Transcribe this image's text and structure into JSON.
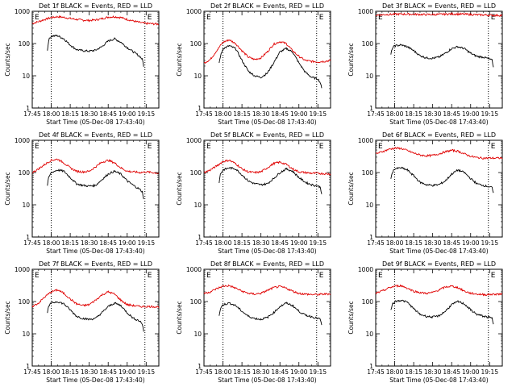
{
  "window": {
    "width_note": ""
  },
  "shared": {
    "ylabel": "Counts/sec",
    "xlabel": "Start Time (05-Dec-08 17:43:40)",
    "x_ticks": [
      "17:45",
      "18:00",
      "18:15",
      "18:30",
      "18:45",
      "19:00",
      "19:15"
    ],
    "y_ticks": [
      "1",
      "10",
      "100",
      "1000"
    ],
    "marker_label": "E",
    "colors": {
      "events": "#000000",
      "lld": "#e00000",
      "axes": "#000000",
      "background": "#ffffff"
    }
  },
  "chart_data": [
    {
      "type": "line",
      "title": "Det 1f BLACK = Events, RED = LLD",
      "xlabel": "Start Time (05-Dec-08 17:43:40)",
      "ylabel": "Counts/sec",
      "x_axis": "minutes since 17:45",
      "xlim": [
        0,
        100
      ],
      "ylim": [
        1,
        1000
      ],
      "yscale": "log",
      "markers_x": [
        15,
        89
      ],
      "series": [
        {
          "name": "LLD",
          "color": "#e00000",
          "start": 0,
          "end": 100,
          "x": [
            0,
            5,
            10,
            15,
            20,
            25,
            30,
            35,
            40,
            45,
            50,
            55,
            60,
            65,
            70,
            75,
            80,
            85,
            88,
            90,
            95,
            100
          ],
          "y": [
            420,
            480,
            560,
            640,
            680,
            650,
            600,
            560,
            530,
            520,
            540,
            590,
            660,
            680,
            640,
            560,
            500,
            450,
            430,
            420,
            410,
            400
          ]
        },
        {
          "name": "Events",
          "color": "#000000",
          "start": 12,
          "end": 88,
          "x": [
            12,
            13,
            15,
            20,
            25,
            30,
            35,
            40,
            45,
            50,
            55,
            60,
            65,
            70,
            75,
            80,
            85,
            87,
            88
          ],
          "y": [
            60,
            130,
            170,
            175,
            140,
            90,
            65,
            60,
            58,
            62,
            80,
            120,
            140,
            110,
            75,
            55,
            40,
            32,
            20
          ]
        }
      ]
    },
    {
      "type": "line",
      "title": "Det 2f BLACK = Events, RED = LLD",
      "xlabel": "Start Time (05-Dec-08 17:43:40)",
      "ylabel": "Counts/sec",
      "x_axis": "minutes since 17:45",
      "xlim": [
        0,
        100
      ],
      "ylim": [
        1,
        1000
      ],
      "yscale": "log",
      "markers_x": [
        15,
        89
      ],
      "series": [
        {
          "name": "LLD",
          "color": "#e00000",
          "start": 0,
          "end": 100,
          "x": [
            0,
            5,
            10,
            15,
            20,
            25,
            30,
            35,
            40,
            45,
            50,
            55,
            60,
            65,
            70,
            75,
            80,
            85,
            90,
            95,
            100
          ],
          "y": [
            25,
            32,
            60,
            110,
            130,
            100,
            60,
            38,
            32,
            36,
            55,
            95,
            115,
            100,
            60,
            40,
            30,
            28,
            27,
            28,
            30
          ]
        },
        {
          "name": "Events",
          "color": "#000000",
          "start": 12,
          "end": 93,
          "x": [
            12,
            13,
            15,
            20,
            25,
            30,
            35,
            40,
            45,
            50,
            55,
            60,
            65,
            70,
            75,
            80,
            85,
            90,
            92,
            93
          ],
          "y": [
            25,
            40,
            70,
            85,
            70,
            30,
            14,
            10,
            9,
            12,
            25,
            55,
            70,
            55,
            25,
            13,
            9,
            8,
            6,
            4
          ]
        }
      ]
    },
    {
      "type": "line",
      "title": "Det 3f BLACK = Events, RED = LLD",
      "xlabel": "Start Time (05-Dec-08 17:43:40)",
      "ylabel": "Counts/sec",
      "x_axis": "minutes since 17:45",
      "xlim": [
        0,
        100
      ],
      "ylim": [
        1,
        1000
      ],
      "yscale": "log",
      "markers_x": [
        15,
        89
      ],
      "series": [
        {
          "name": "LLD",
          "color": "#e00000",
          "start": 0,
          "end": 100,
          "x": [
            0,
            10,
            20,
            30,
            40,
            50,
            60,
            70,
            80,
            90,
            100
          ],
          "y": [
            760,
            800,
            820,
            810,
            790,
            800,
            830,
            810,
            780,
            760,
            740
          ]
        },
        {
          "name": "Events",
          "color": "#000000",
          "start": 12,
          "end": 93,
          "x": [
            12,
            13,
            15,
            20,
            25,
            30,
            35,
            40,
            45,
            50,
            55,
            60,
            65,
            70,
            75,
            80,
            85,
            90,
            92,
            93
          ],
          "y": [
            45,
            70,
            85,
            90,
            80,
            60,
            42,
            36,
            35,
            38,
            50,
            70,
            80,
            70,
            50,
            40,
            38,
            33,
            30,
            18
          ]
        }
      ]
    },
    {
      "type": "line",
      "title": "Det 4f BLACK = Events, RED = LLD",
      "xlabel": "Start Time (05-Dec-08 17:43:40)",
      "ylabel": "Counts/sec",
      "x_axis": "minutes since 17:45",
      "xlim": [
        0,
        100
      ],
      "ylim": [
        1,
        1000
      ],
      "yscale": "log",
      "markers_x": [
        15,
        89
      ],
      "series": [
        {
          "name": "LLD",
          "color": "#e00000",
          "start": 0,
          "end": 100,
          "x": [
            0,
            5,
            10,
            15,
            20,
            25,
            30,
            35,
            40,
            45,
            50,
            55,
            60,
            65,
            70,
            75,
            80,
            85,
            90,
            95,
            100
          ],
          "y": [
            100,
            130,
            180,
            240,
            260,
            200,
            140,
            110,
            105,
            110,
            150,
            210,
            240,
            200,
            140,
            110,
            105,
            100,
            105,
            100,
            95
          ]
        },
        {
          "name": "Events",
          "color": "#000000",
          "start": 12,
          "end": 88,
          "x": [
            12,
            13,
            15,
            20,
            25,
            30,
            35,
            40,
            45,
            50,
            55,
            60,
            65,
            70,
            75,
            80,
            85,
            87,
            88
          ],
          "y": [
            40,
            70,
            100,
            120,
            110,
            70,
            45,
            40,
            38,
            40,
            60,
            90,
            110,
            90,
            55,
            40,
            30,
            25,
            15
          ]
        }
      ]
    },
    {
      "type": "line",
      "title": "Det 5f BLACK = Events, RED = LLD",
      "xlabel": "Start Time (05-Dec-08 17:43:40)",
      "ylabel": "Counts/sec",
      "x_axis": "minutes since 17:45",
      "xlim": [
        0,
        100
      ],
      "ylim": [
        1,
        1000
      ],
      "yscale": "log",
      "markers_x": [
        15,
        89
      ],
      "series": [
        {
          "name": "LLD",
          "color": "#e00000",
          "start": 0,
          "end": 100,
          "x": [
            0,
            5,
            10,
            15,
            20,
            25,
            30,
            35,
            40,
            45,
            50,
            55,
            60,
            65,
            70,
            75,
            80,
            85,
            90,
            95,
            100
          ],
          "y": [
            100,
            120,
            160,
            220,
            240,
            190,
            130,
            105,
            100,
            105,
            140,
            190,
            210,
            180,
            130,
            105,
            100,
            95,
            95,
            92,
            90
          ]
        },
        {
          "name": "Events",
          "color": "#000000",
          "start": 12,
          "end": 93,
          "x": [
            12,
            13,
            15,
            20,
            25,
            30,
            35,
            40,
            45,
            50,
            55,
            60,
            65,
            70,
            75,
            80,
            85,
            90,
            92,
            93
          ],
          "y": [
            50,
            90,
            120,
            140,
            130,
            85,
            55,
            45,
            42,
            45,
            65,
            100,
            130,
            110,
            70,
            50,
            42,
            38,
            35,
            22
          ]
        }
      ]
    },
    {
      "type": "line",
      "title": "Det 6f BLACK = Events, RED = LLD",
      "xlabel": "Start Time (05-Dec-08 17:43:40)",
      "ylabel": "Counts/sec",
      "x_axis": "minutes since 17:45",
      "xlim": [
        0,
        100
      ],
      "ylim": [
        1,
        1000
      ],
      "yscale": "log",
      "markers_x": [
        15,
        89
      ],
      "series": [
        {
          "name": "LLD",
          "color": "#e00000",
          "start": 0,
          "end": 100,
          "x": [
            0,
            5,
            10,
            15,
            20,
            25,
            30,
            35,
            40,
            45,
            50,
            55,
            60,
            65,
            70,
            75,
            80,
            85,
            90,
            95,
            100
          ],
          "y": [
            380,
            440,
            520,
            570,
            560,
            480,
            400,
            350,
            330,
            340,
            380,
            440,
            490,
            460,
            380,
            320,
            290,
            280,
            280,
            280,
            280
          ]
        },
        {
          "name": "Events",
          "color": "#000000",
          "start": 12,
          "end": 93,
          "x": [
            12,
            13,
            15,
            20,
            25,
            30,
            35,
            40,
            45,
            50,
            55,
            60,
            65,
            70,
            75,
            80,
            85,
            90,
            92,
            93
          ],
          "y": [
            60,
            100,
            130,
            140,
            120,
            80,
            50,
            42,
            40,
            42,
            55,
            90,
            120,
            100,
            65,
            45,
            40,
            36,
            34,
            22
          ]
        }
      ]
    },
    {
      "type": "line",
      "title": "Det 7f BLACK = Events, RED = LLD",
      "xlabel": "Start Time (05-Dec-08 17:43:40)",
      "ylabel": "Counts/sec",
      "x_axis": "minutes since 17:45",
      "xlim": [
        0,
        100
      ],
      "ylim": [
        1,
        1000
      ],
      "yscale": "log",
      "markers_x": [
        15,
        89
      ],
      "series": [
        {
          "name": "LLD",
          "color": "#e00000",
          "start": 0,
          "end": 100,
          "x": [
            0,
            5,
            10,
            15,
            20,
            25,
            30,
            35,
            40,
            45,
            50,
            55,
            60,
            65,
            70,
            75,
            80,
            85,
            90,
            95,
            100
          ],
          "y": [
            70,
            90,
            140,
            200,
            230,
            180,
            120,
            85,
            75,
            80,
            110,
            160,
            200,
            170,
            110,
            80,
            75,
            70,
            70,
            70,
            68
          ]
        },
        {
          "name": "Events",
          "color": "#000000",
          "start": 12,
          "end": 88,
          "x": [
            12,
            13,
            15,
            20,
            25,
            30,
            35,
            40,
            45,
            50,
            55,
            60,
            65,
            70,
            75,
            80,
            85,
            87,
            88
          ],
          "y": [
            45,
            70,
            90,
            100,
            85,
            55,
            35,
            30,
            28,
            30,
            45,
            70,
            90,
            75,
            45,
            30,
            25,
            20,
            12
          ]
        }
      ]
    },
    {
      "type": "line",
      "title": "Det 8f BLACK = Events, RED = LLD",
      "xlabel": "Start Time (05-Dec-08 17:43:40)",
      "ylabel": "Counts/sec",
      "x_axis": "minutes since 17:45",
      "xlim": [
        0,
        100
      ],
      "ylim": [
        1,
        1000
      ],
      "yscale": "log",
      "markers_x": [
        15,
        89
      ],
      "series": [
        {
          "name": "LLD",
          "color": "#e00000",
          "start": 0,
          "end": 100,
          "x": [
            0,
            5,
            10,
            15,
            20,
            25,
            30,
            35,
            40,
            45,
            50,
            55,
            60,
            65,
            70,
            75,
            80,
            85,
            90,
            95,
            100
          ],
          "y": [
            180,
            200,
            250,
            300,
            310,
            260,
            210,
            180,
            170,
            180,
            220,
            270,
            290,
            260,
            210,
            180,
            170,
            165,
            165,
            170,
            175
          ]
        },
        {
          "name": "Events",
          "color": "#000000",
          "start": 12,
          "end": 93,
          "x": [
            12,
            13,
            15,
            20,
            25,
            30,
            35,
            40,
            45,
            50,
            55,
            60,
            65,
            70,
            75,
            80,
            85,
            90,
            92,
            93
          ],
          "y": [
            35,
            60,
            80,
            90,
            75,
            50,
            35,
            30,
            28,
            32,
            45,
            70,
            90,
            75,
            50,
            38,
            34,
            30,
            28,
            18
          ]
        }
      ]
    },
    {
      "type": "line",
      "title": "Det 9f BLACK = Events, RED = LLD",
      "xlabel": "Start Time (05-Dec-08 17:43:40)",
      "ylabel": "Counts/sec",
      "x_axis": "minutes since 17:45",
      "xlim": [
        0,
        100
      ],
      "ylim": [
        1,
        1000
      ],
      "yscale": "log",
      "markers_x": [
        15,
        89
      ],
      "series": [
        {
          "name": "LLD",
          "color": "#e00000",
          "start": 0,
          "end": 100,
          "x": [
            0,
            5,
            10,
            15,
            20,
            25,
            30,
            35,
            40,
            45,
            50,
            55,
            60,
            65,
            70,
            75,
            80,
            85,
            90,
            95,
            100
          ],
          "y": [
            180,
            210,
            260,
            300,
            310,
            260,
            210,
            190,
            180,
            190,
            230,
            280,
            300,
            270,
            210,
            180,
            170,
            165,
            165,
            170,
            170
          ]
        },
        {
          "name": "Events",
          "color": "#000000",
          "start": 12,
          "end": 93,
          "x": [
            12,
            13,
            15,
            20,
            25,
            30,
            35,
            40,
            45,
            50,
            55,
            60,
            65,
            70,
            75,
            80,
            85,
            90,
            92,
            93
          ],
          "y": [
            55,
            80,
            100,
            110,
            95,
            60,
            40,
            35,
            33,
            36,
            50,
            80,
            100,
            85,
            55,
            40,
            35,
            32,
            30,
            20
          ]
        }
      ]
    }
  ]
}
